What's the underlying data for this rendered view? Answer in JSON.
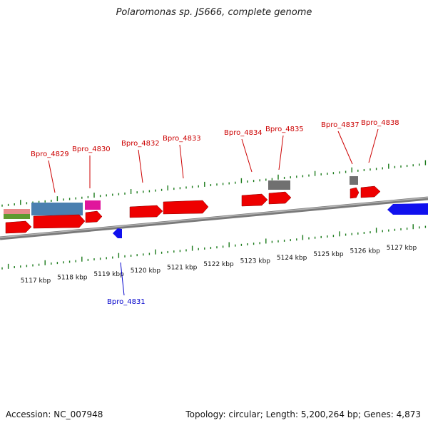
{
  "title": "Polaromonas sp. JS666, complete genome",
  "footer": {
    "accession": "Accession: NC_007948",
    "topology": "Topology: circular; Length: 5,200,264 bp; Genes: 4,873"
  },
  "colors": {
    "forward_gene": "#ee0000",
    "reverse_gene": "#1010ee",
    "label_forward": "#cc0000",
    "label_reverse": "#0000cc",
    "tick": "#1a7a1a",
    "backbone": "#888888",
    "track_blue": "#4a7fb0",
    "track_magenta": "#e0169c",
    "track_pink": "#e88a8a",
    "track_green": "#5f9a2f",
    "track_gray": "#707070"
  },
  "axis": {
    "unit": "kbp",
    "major_ticks": [
      5117,
      5118,
      5119,
      5120,
      5121,
      5122,
      5123,
      5124,
      5125,
      5126,
      5127
    ]
  },
  "gene_labels": [
    {
      "id": "Bpro_4829",
      "strand": "forward"
    },
    {
      "id": "Bpro_4830",
      "strand": "forward"
    },
    {
      "id": "Bpro_4831",
      "strand": "reverse"
    },
    {
      "id": "Bpro_4832",
      "strand": "forward"
    },
    {
      "id": "Bpro_4833",
      "strand": "forward"
    },
    {
      "id": "Bpro_4834",
      "strand": "forward"
    },
    {
      "id": "Bpro_4835",
      "strand": "forward"
    },
    {
      "id": "Bpro_4837",
      "strand": "forward"
    },
    {
      "id": "Bpro_4838",
      "strand": "forward"
    }
  ]
}
